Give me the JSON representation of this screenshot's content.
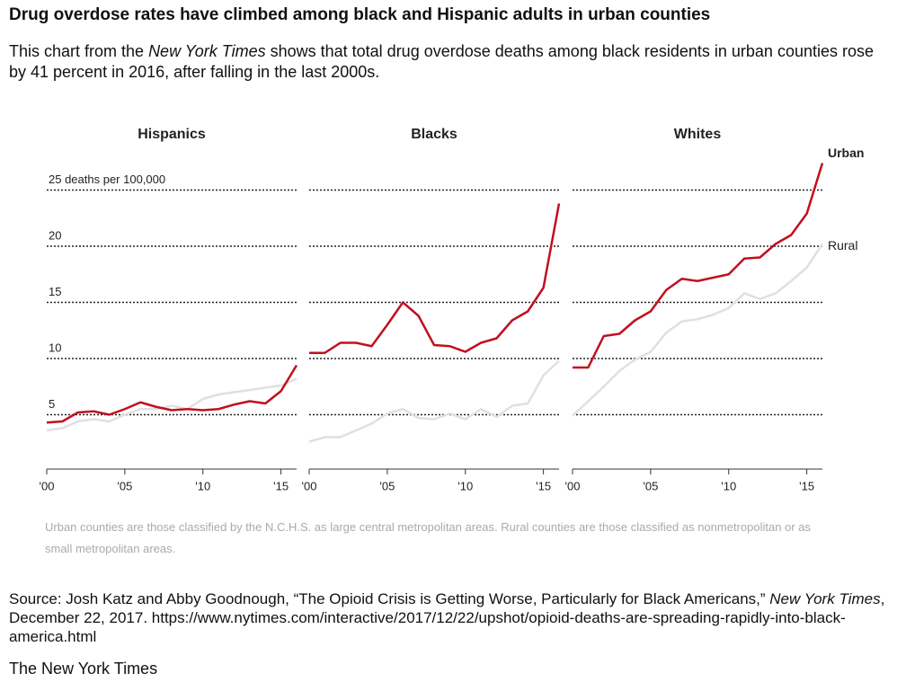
{
  "title": "Drug overdose rates have climbed among black and Hispanic adults in urban counties",
  "subtitle": {
    "before": "This chart from the ",
    "italic": "New York Times",
    "after": " shows that total drug overdose deaths among black residents in urban counties rose by 41 percent in 2016, after falling in the last 2000s."
  },
  "chart_data": [
    {
      "type": "line",
      "title": "Hispanics",
      "x": [
        2000,
        2001,
        2002,
        2003,
        2004,
        2005,
        2006,
        2007,
        2008,
        2009,
        2010,
        2011,
        2012,
        2013,
        2014,
        2015,
        2016
      ],
      "xlim": [
        2000,
        2016
      ],
      "xticks": [
        {
          "value": 2000,
          "label": "'00"
        },
        {
          "value": 2005,
          "label": "'05"
        },
        {
          "value": 2010,
          "label": "'10"
        },
        {
          "value": 2015,
          "label": "'15"
        }
      ],
      "ylim": [
        0,
        28
      ],
      "yticks": [
        5,
        10,
        15,
        20,
        {
          "value": 25,
          "label": "25 deaths per 100,000"
        }
      ],
      "grid": true,
      "series": [
        {
          "color": "#e0e0e0",
          "values": [
            3.6,
            3.8,
            4.4,
            4.6,
            4.4,
            5.0,
            5.5,
            5.5,
            5.8,
            5.5,
            6.4,
            6.8,
            7.0,
            7.2,
            7.4,
            7.6,
            8.2
          ]
        },
        {
          "color": "#c0101e",
          "values": [
            4.3,
            4.4,
            5.2,
            5.3,
            5.0,
            5.5,
            6.1,
            5.7,
            5.4,
            5.5,
            5.4,
            5.5,
            5.9,
            6.2,
            6.0,
            7.1,
            9.4
          ]
        }
      ]
    },
    {
      "type": "line",
      "title": "Blacks",
      "x": [
        2000,
        2001,
        2002,
        2003,
        2004,
        2005,
        2006,
        2007,
        2008,
        2009,
        2010,
        2011,
        2012,
        2013,
        2014,
        2015,
        2016
      ],
      "xlim": [
        2000,
        2016
      ],
      "xticks": [
        {
          "value": 2000,
          "label": "'00"
        },
        {
          "value": 2005,
          "label": "'05"
        },
        {
          "value": 2010,
          "label": "'10"
        },
        {
          "value": 2015,
          "label": "'15"
        }
      ],
      "sharey": true,
      "series": [
        {
          "color": "#e0e0e0",
          "values": [
            2.6,
            3.0,
            3.0,
            3.6,
            4.2,
            5.1,
            5.5,
            4.7,
            4.6,
            5.1,
            4.6,
            5.5,
            4.8,
            5.8,
            6.0,
            8.5,
            9.8
          ]
        },
        {
          "color": "#c0101e",
          "values": [
            10.5,
            10.5,
            11.4,
            11.4,
            11.1,
            13.0,
            15.0,
            13.8,
            11.2,
            11.1,
            10.6,
            11.4,
            11.8,
            13.4,
            14.2,
            16.3,
            23.8
          ]
        }
      ]
    },
    {
      "type": "line",
      "title": "Whites",
      "x": [
        2000,
        2001,
        2002,
        2003,
        2004,
        2005,
        2006,
        2007,
        2008,
        2009,
        2010,
        2011,
        2012,
        2013,
        2014,
        2015,
        2016
      ],
      "xlim": [
        2000,
        2016
      ],
      "xticks": [
        {
          "value": 2000,
          "label": "'00"
        },
        {
          "value": 2005,
          "label": "'05"
        },
        {
          "value": 2010,
          "label": "'10"
        },
        {
          "value": 2015,
          "label": "'15"
        }
      ],
      "sharey": true,
      "series": [
        {
          "name": "Rural",
          "color": "#e0e0e0",
          "values": [
            4.9,
            6.2,
            7.5,
            8.9,
            9.9,
            10.6,
            12.3,
            13.3,
            13.5,
            13.9,
            14.5,
            15.8,
            15.3,
            15.8,
            16.9,
            18.1,
            20.2
          ]
        },
        {
          "name": "Urban",
          "color": "#c0101e",
          "values": [
            9.2,
            9.2,
            12.0,
            12.2,
            13.4,
            14.2,
            16.1,
            17.1,
            16.9,
            17.2,
            17.5,
            18.9,
            19.0,
            20.2,
            21.0,
            22.9,
            27.4
          ]
        }
      ]
    }
  ],
  "note": "Urban counties are those classified by the N.C.H.S. as large central metropolitan areas. Rural counties are those classified as nonmetropolitan or as small metropolitan areas.",
  "source": {
    "before": "Source: Josh Katz and Abby Goodnough, “The Opioid Crisis is Getting Worse, Particularly for Black Americans,” ",
    "italic": "New York Times",
    "after": ", December 22, 2017. https://www.nytimes.com/interactive/2017/12/22/upshot/opioid-deaths-are-spreading-rapidly-into-black-america.html"
  },
  "publisher": "The New York Times"
}
